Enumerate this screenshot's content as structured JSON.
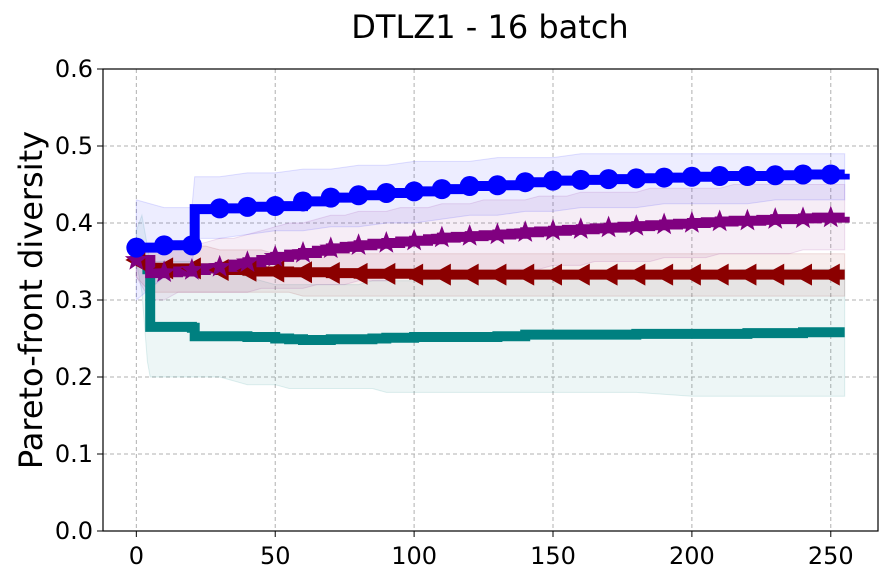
{
  "chart_data": {
    "type": "line",
    "title": "DTLZ1 - 16 batch",
    "xlabel": "",
    "ylabel": "Pareto-front diversity",
    "xlim": [
      -12,
      267
    ],
    "ylim": [
      0.0,
      0.6
    ],
    "xticks": [
      0,
      50,
      100,
      150,
      200,
      250
    ],
    "yticks": [
      0.0,
      0.1,
      0.2,
      0.3,
      0.4,
      0.5,
      0.6
    ],
    "xtick_labels": [
      "0",
      "50",
      "100",
      "150",
      "200",
      "250"
    ],
    "ytick_labels": [
      "0.0",
      "0.1",
      "0.2",
      "0.3",
      "0.4",
      "0.5",
      "0.6"
    ],
    "grid": true,
    "series": [
      {
        "name": "series-teal",
        "color": "#008080",
        "marker": "none",
        "x": [
          0,
          2,
          4,
          5,
          10,
          20,
          21,
          30,
          40,
          50,
          55,
          60,
          65,
          70,
          80,
          85,
          90,
          100,
          120,
          130,
          140,
          160,
          170,
          180,
          200,
          220,
          240,
          255
        ],
        "values": [
          0.351,
          0.351,
          0.34,
          0.265,
          0.265,
          0.264,
          0.253,
          0.253,
          0.252,
          0.25,
          0.249,
          0.248,
          0.248,
          0.249,
          0.249,
          0.25,
          0.251,
          0.252,
          0.252,
          0.253,
          0.255,
          0.255,
          0.255,
          0.256,
          0.256,
          0.257,
          0.258,
          0.258
        ],
        "lower": [
          0.35,
          0.31,
          0.22,
          0.2,
          0.2,
          0.2,
          0.2,
          0.2,
          0.19,
          0.19,
          0.185,
          0.185,
          0.185,
          0.185,
          0.185,
          0.185,
          0.18,
          0.18,
          0.18,
          0.18,
          0.18,
          0.18,
          0.18,
          0.18,
          0.175,
          0.175,
          0.175,
          0.175
        ],
        "upper": [
          0.39,
          0.41,
          0.37,
          0.35,
          0.35,
          0.35,
          0.34,
          0.34,
          0.33,
          0.32,
          0.32,
          0.32,
          0.32,
          0.32,
          0.32,
          0.325,
          0.325,
          0.325,
          0.33,
          0.33,
          0.33,
          0.335,
          0.335,
          0.335,
          0.335,
          0.34,
          0.34,
          0.34
        ]
      },
      {
        "name": "series-darkred",
        "color": "#8b0000",
        "marker": "triangle-left",
        "x": [
          0,
          5,
          10,
          15,
          20,
          25,
          30,
          35,
          40,
          45,
          50,
          55,
          60,
          65,
          70,
          75,
          80,
          85,
          90,
          95,
          100,
          105,
          110,
          115,
          120,
          125,
          130,
          135,
          140,
          145,
          150,
          155,
          160,
          165,
          170,
          175,
          180,
          185,
          190,
          195,
          200,
          205,
          210,
          215,
          220,
          225,
          230,
          235,
          240,
          245,
          250,
          255
        ],
        "values": [
          0.352,
          0.342,
          0.341,
          0.341,
          0.341,
          0.341,
          0.339,
          0.339,
          0.338,
          0.337,
          0.337,
          0.336,
          0.336,
          0.336,
          0.335,
          0.335,
          0.334,
          0.334,
          0.334,
          0.334,
          0.333,
          0.333,
          0.333,
          0.333,
          0.333,
          0.333,
          0.333,
          0.333,
          0.333,
          0.333,
          0.333,
          0.333,
          0.333,
          0.333,
          0.333,
          0.333,
          0.333,
          0.333,
          0.333,
          0.333,
          0.333,
          0.333,
          0.333,
          0.333,
          0.333,
          0.333,
          0.333,
          0.333,
          0.333,
          0.333,
          0.333,
          0.333
        ],
        "lower": [
          0.33,
          0.31,
          0.31,
          0.31,
          0.31,
          0.31,
          0.31,
          0.31,
          0.31,
          0.31,
          0.31,
          0.31,
          0.305,
          0.305,
          0.305,
          0.305,
          0.305,
          0.305,
          0.305,
          0.305,
          0.305,
          0.305,
          0.305,
          0.305,
          0.305,
          0.305,
          0.305,
          0.305,
          0.305,
          0.305,
          0.305,
          0.305,
          0.305,
          0.305,
          0.305,
          0.305,
          0.305,
          0.305,
          0.305,
          0.305,
          0.305,
          0.305,
          0.305,
          0.305,
          0.305,
          0.305,
          0.305,
          0.305,
          0.305,
          0.305,
          0.305,
          0.305
        ],
        "upper": [
          0.37,
          0.37,
          0.37,
          0.37,
          0.37,
          0.37,
          0.365,
          0.365,
          0.365,
          0.365,
          0.36,
          0.36,
          0.36,
          0.36,
          0.36,
          0.36,
          0.36,
          0.36,
          0.36,
          0.36,
          0.36,
          0.36,
          0.36,
          0.36,
          0.36,
          0.36,
          0.36,
          0.36,
          0.36,
          0.36,
          0.36,
          0.36,
          0.36,
          0.36,
          0.36,
          0.36,
          0.36,
          0.36,
          0.36,
          0.36,
          0.36,
          0.36,
          0.36,
          0.36,
          0.36,
          0.36,
          0.36,
          0.36,
          0.36,
          0.36,
          0.36,
          0.36
        ]
      },
      {
        "name": "series-purple",
        "color": "#800080",
        "marker": "star",
        "x": [
          0,
          5,
          10,
          15,
          20,
          25,
          30,
          35,
          40,
          45,
          50,
          55,
          60,
          65,
          70,
          75,
          80,
          85,
          90,
          95,
          100,
          105,
          110,
          115,
          120,
          125,
          130,
          135,
          140,
          145,
          150,
          155,
          160,
          165,
          170,
          175,
          180,
          185,
          190,
          195,
          200,
          205,
          210,
          215,
          220,
          225,
          230,
          235,
          240,
          245,
          250,
          255
        ],
        "values": [
          0.352,
          0.335,
          0.336,
          0.337,
          0.339,
          0.341,
          0.343,
          0.346,
          0.349,
          0.352,
          0.356,
          0.359,
          0.361,
          0.364,
          0.367,
          0.369,
          0.371,
          0.373,
          0.374,
          0.376,
          0.377,
          0.379,
          0.381,
          0.382,
          0.383,
          0.384,
          0.385,
          0.386,
          0.388,
          0.389,
          0.39,
          0.391,
          0.392,
          0.393,
          0.394,
          0.395,
          0.396,
          0.397,
          0.398,
          0.399,
          0.4,
          0.401,
          0.402,
          0.403,
          0.403,
          0.404,
          0.405,
          0.405,
          0.406,
          0.407,
          0.407,
          0.408
        ],
        "lower": [
          0.33,
          0.3,
          0.3,
          0.31,
          0.31,
          0.31,
          0.31,
          0.31,
          0.31,
          0.315,
          0.315,
          0.315,
          0.315,
          0.32,
          0.32,
          0.32,
          0.325,
          0.325,
          0.325,
          0.33,
          0.33,
          0.33,
          0.33,
          0.335,
          0.335,
          0.335,
          0.34,
          0.34,
          0.34,
          0.34,
          0.345,
          0.345,
          0.345,
          0.35,
          0.35,
          0.35,
          0.35,
          0.35,
          0.355,
          0.355,
          0.355,
          0.355,
          0.36,
          0.36,
          0.36,
          0.36,
          0.36,
          0.36,
          0.365,
          0.365,
          0.365,
          0.365
        ],
        "upper": [
          0.37,
          0.37,
          0.37,
          0.37,
          0.37,
          0.375,
          0.38,
          0.38,
          0.385,
          0.39,
          0.395,
          0.4,
          0.4,
          0.405,
          0.41,
          0.41,
          0.415,
          0.415,
          0.415,
          0.42,
          0.42,
          0.42,
          0.425,
          0.425,
          0.425,
          0.43,
          0.43,
          0.43,
          0.43,
          0.435,
          0.435,
          0.435,
          0.44,
          0.44,
          0.44,
          0.44,
          0.44,
          0.445,
          0.445,
          0.445,
          0.445,
          0.445,
          0.445,
          0.45,
          0.45,
          0.45,
          0.45,
          0.45,
          0.45,
          0.45,
          0.45,
          0.45
        ]
      },
      {
        "name": "series-blue",
        "color": "#0000ff",
        "marker": "circle",
        "x": [
          0,
          10,
          20,
          21,
          30,
          40,
          50,
          60,
          70,
          80,
          90,
          100,
          110,
          120,
          130,
          140,
          150,
          160,
          170,
          180,
          190,
          200,
          210,
          220,
          230,
          240,
          250,
          255
        ],
        "values": [
          0.368,
          0.371,
          0.371,
          0.418,
          0.419,
          0.421,
          0.422,
          0.428,
          0.433,
          0.436,
          0.439,
          0.441,
          0.444,
          0.448,
          0.449,
          0.453,
          0.455,
          0.456,
          0.457,
          0.458,
          0.459,
          0.46,
          0.461,
          0.461,
          0.462,
          0.463,
          0.463,
          0.464
        ],
        "lower": [
          0.3,
          0.33,
          0.34,
          0.38,
          0.38,
          0.385,
          0.39,
          0.39,
          0.395,
          0.395,
          0.4,
          0.4,
          0.405,
          0.41,
          0.41,
          0.415,
          0.415,
          0.42,
          0.42,
          0.42,
          0.425,
          0.425,
          0.425,
          0.425,
          0.43,
          0.43,
          0.43,
          0.43
        ],
        "upper": [
          0.43,
          0.42,
          0.42,
          0.46,
          0.46,
          0.465,
          0.465,
          0.47,
          0.47,
          0.475,
          0.475,
          0.48,
          0.48,
          0.48,
          0.485,
          0.485,
          0.485,
          0.49,
          0.49,
          0.49,
          0.49,
          0.49,
          0.49,
          0.49,
          0.49,
          0.49,
          0.49,
          0.49
        ]
      }
    ]
  }
}
